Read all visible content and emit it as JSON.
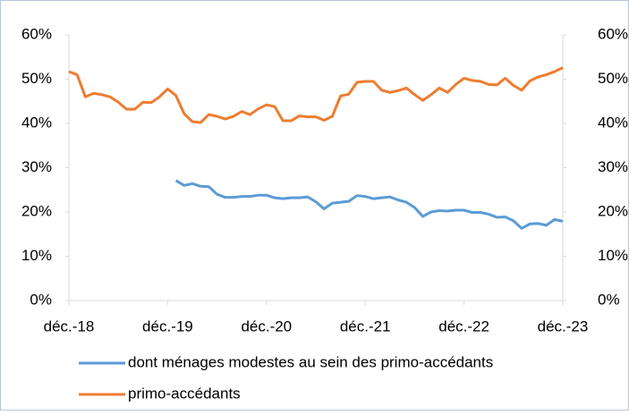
{
  "chart_data": {
    "type": "line",
    "categories": [
      "déc.-18",
      null,
      null,
      null,
      null,
      null,
      null,
      null,
      null,
      null,
      null,
      null,
      "déc.-19",
      null,
      null,
      null,
      null,
      null,
      null,
      null,
      null,
      null,
      null,
      null,
      "déc.-20",
      null,
      null,
      null,
      null,
      null,
      null,
      null,
      null,
      null,
      null,
      null,
      "déc.-21",
      null,
      null,
      null,
      null,
      null,
      null,
      null,
      null,
      null,
      null,
      null,
      "déc.-22",
      null,
      null,
      null,
      null,
      null,
      null,
      null,
      null,
      null,
      null,
      null,
      "déc.-23"
    ],
    "series": [
      {
        "name": "dont ménages modestes au sein des primo-accédants",
        "color": "#5b9bd5",
        "values": [
          null,
          null,
          null,
          null,
          null,
          null,
          null,
          null,
          null,
          null,
          null,
          null,
          null,
          27.1,
          26.0,
          26.4,
          25.8,
          25.7,
          24.0,
          23.3,
          23.3,
          23.5,
          23.5,
          23.8,
          23.8,
          23.2,
          23.0,
          23.2,
          23.2,
          23.4,
          22.3,
          20.7,
          22.0,
          22.2,
          22.4,
          23.7,
          23.5,
          23.0,
          23.2,
          23.4,
          22.7,
          22.2,
          21.0,
          19.0,
          20.0,
          20.3,
          20.2,
          20.4,
          20.4,
          19.9,
          19.9,
          19.5,
          18.8,
          18.9,
          18.0,
          16.3,
          17.3,
          17.4,
          17.0,
          18.3,
          17.9
        ]
      },
      {
        "name": "primo-accédants",
        "color": "#ed7d31",
        "values": [
          51.7,
          51.0,
          46.0,
          46.8,
          46.5,
          46.0,
          44.8,
          43.2,
          43.2,
          44.8,
          44.7,
          46.0,
          47.8,
          46.3,
          42.2,
          40.4,
          40.2,
          42.0,
          41.6,
          41.0,
          41.6,
          42.7,
          42.0,
          43.3,
          44.2,
          43.8,
          40.6,
          40.6,
          41.7,
          41.5,
          41.5,
          40.7,
          41.6,
          46.2,
          46.6,
          49.3,
          49.5,
          49.5,
          47.5,
          47.0,
          47.4,
          48.0,
          46.5,
          45.2,
          46.5,
          48.0,
          47.0,
          48.8,
          50.2,
          49.7,
          49.5,
          48.8,
          48.7,
          50.2,
          48.6,
          47.5,
          49.6,
          50.5,
          51.0,
          51.7,
          52.6
        ]
      }
    ],
    "ylim": [
      0,
      60
    ],
    "yticks": [
      {
        "value": 0,
        "label": "0%"
      },
      {
        "value": 10,
        "label": "10%"
      },
      {
        "value": 20,
        "label": "20%"
      },
      {
        "value": 30,
        "label": "30%"
      },
      {
        "value": 40,
        "label": "40%"
      },
      {
        "value": 50,
        "label": "50%"
      },
      {
        "value": 60,
        "label": "60%"
      }
    ],
    "y2lim": [
      0,
      60
    ],
    "y2ticks": [
      {
        "value": 0,
        "label": "0%"
      },
      {
        "value": 10,
        "label": "10%"
      },
      {
        "value": 20,
        "label": "20%"
      },
      {
        "value": 30,
        "label": "30%"
      },
      {
        "value": 40,
        "label": "40%"
      },
      {
        "value": 50,
        "label": "50%"
      },
      {
        "value": 60,
        "label": "60%"
      }
    ],
    "grid": false,
    "legend": "bottom"
  }
}
